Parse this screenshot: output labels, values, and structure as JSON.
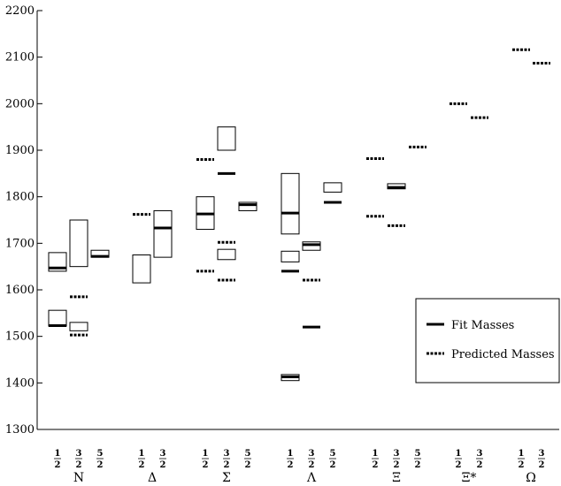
{
  "chart_data": {
    "type": "box-and-level",
    "title": "",
    "xlabel": "",
    "ylabel": "",
    "ylim": [
      1300,
      2200
    ],
    "yticks": [
      1300,
      1400,
      1500,
      1600,
      1700,
      1800,
      1900,
      2000,
      2100,
      2200
    ],
    "grid": false,
    "legend": {
      "placement": "bottom-right",
      "entries": [
        {
          "label": "Fit Masses",
          "style": "solid"
        },
        {
          "label": "Predicted Masses",
          "style": "dashed"
        }
      ]
    },
    "groups": [
      {
        "symbol": "N",
        "columns": [
          {
            "spin": "1/2",
            "boxes": [
              [
                1640,
                1680
              ],
              [
                1522,
                1556
              ]
            ],
            "fit": [
              1647,
              1523
            ],
            "predicted": []
          },
          {
            "spin": "3/2",
            "boxes": [
              [
                1650,
                1750
              ],
              [
                1512,
                1530
              ]
            ],
            "fit": [],
            "predicted": [
              1585,
              1503
            ]
          },
          {
            "spin": "5/2",
            "boxes": [
              [
                1670,
                1685
              ]
            ],
            "fit": [
              1672
            ],
            "predicted": []
          }
        ]
      },
      {
        "symbol": "Δ",
        "columns": [
          {
            "spin": "1/2",
            "boxes": [
              [
                1615,
                1675
              ]
            ],
            "fit": [],
            "predicted": [
              1762
            ]
          },
          {
            "spin": "3/2",
            "boxes": [
              [
                1670,
                1770
              ]
            ],
            "fit": [
              1733
            ],
            "predicted": []
          }
        ]
      },
      {
        "symbol": "Σ",
        "columns": [
          {
            "spin": "1/2",
            "boxes": [
              [
                1730,
                1800
              ]
            ],
            "fit": [
              1763
            ],
            "predicted": [
              1880,
              1640
            ]
          },
          {
            "spin": "3/2",
            "boxes": [
              [
                1900,
                1950
              ],
              [
                1665,
                1687
              ]
            ],
            "fit": [
              1850
            ],
            "predicted": [
              1702,
              1621
            ]
          },
          {
            "spin": "5/2",
            "boxes": [
              [
                1770,
                1788
              ]
            ],
            "fit": [
              1783
            ],
            "predicted": []
          }
        ]
      },
      {
        "symbol": "Λ",
        "columns": [
          {
            "spin": "1/2",
            "boxes": [
              [
                1720,
                1850
              ],
              [
                1660,
                1683
              ],
              [
                1405,
                1418
              ]
            ],
            "fit": [
              1765,
              1640,
              1413
            ],
            "predicted": []
          },
          {
            "spin": "3/2",
            "boxes": [
              [
                1685,
                1703
              ]
            ],
            "fit": [
              1697,
              1520
            ],
            "predicted": [
              1621
            ]
          },
          {
            "spin": "5/2",
            "boxes": [
              [
                1810,
                1830
              ]
            ],
            "fit": [
              1788
            ],
            "predicted": []
          }
        ]
      },
      {
        "symbol": "Ξ",
        "columns": [
          {
            "spin": "1/2",
            "boxes": [],
            "fit": [],
            "predicted": [
              1882,
              1758
            ]
          },
          {
            "spin": "3/2",
            "boxes": [
              [
                1817,
                1828
              ]
            ],
            "fit": [
              1820
            ],
            "predicted": [
              1738
            ]
          },
          {
            "spin": "5/2",
            "boxes": [],
            "fit": [],
            "predicted": [
              1907
            ]
          }
        ]
      },
      {
        "symbol": "Ξ*",
        "columns": [
          {
            "spin": "1/2",
            "boxes": [],
            "fit": [],
            "predicted": [
              2000
            ]
          },
          {
            "spin": "3/2",
            "boxes": [],
            "fit": [],
            "predicted": [
              1970
            ]
          }
        ]
      },
      {
        "symbol": "Ω",
        "columns": [
          {
            "spin": "1/2",
            "boxes": [],
            "fit": [],
            "predicted": [
              2116
            ]
          },
          {
            "spin": "3/2",
            "boxes": [],
            "fit": [],
            "predicted": [
              2087
            ]
          }
        ]
      }
    ]
  }
}
